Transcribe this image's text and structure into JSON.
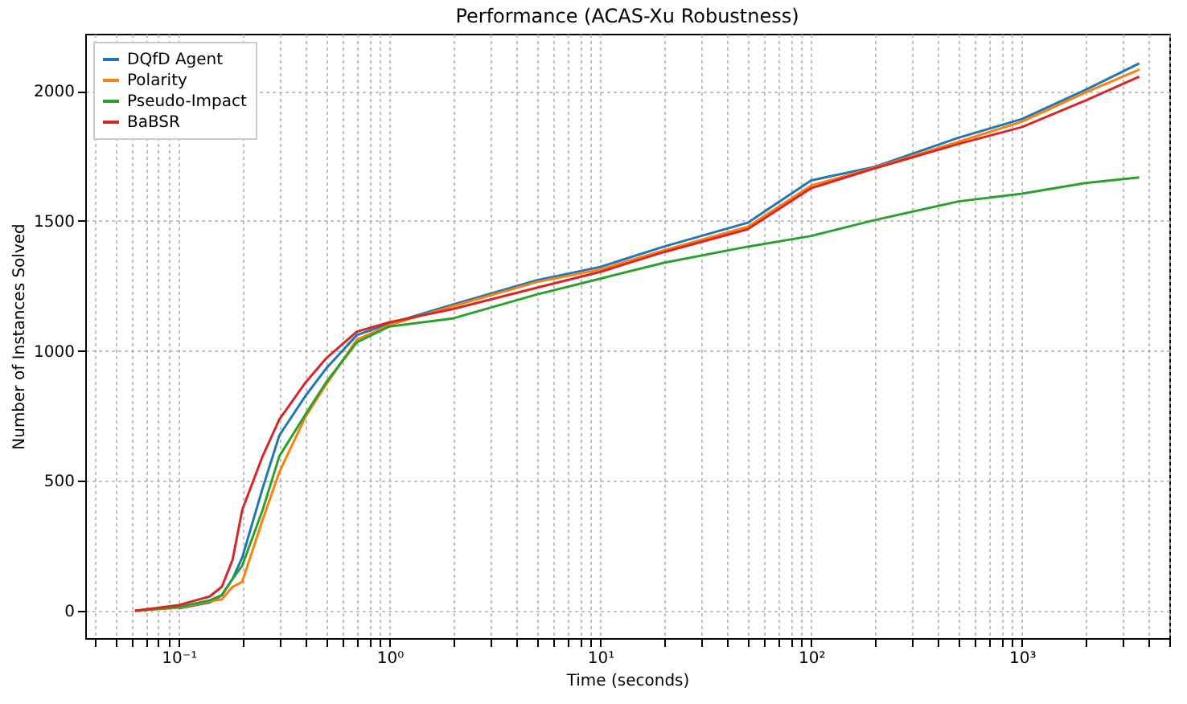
{
  "chart_data": {
    "type": "line",
    "title": "Performance (ACAS-Xu Robustness)",
    "xlabel": "Time (seconds)",
    "ylabel": "Number of Instances Solved",
    "log": "x",
    "grid": true,
    "legend": "top left",
    "line_style": "solid",
    "marker": "none",
    "x": [
      0.062,
      0.1,
      0.14,
      0.16,
      0.18,
      0.2,
      0.25,
      0.3,
      0.4,
      0.5,
      0.7,
      1,
      2,
      5,
      10,
      20,
      50,
      100,
      200,
      500,
      1000,
      2000,
      3600
    ],
    "series": [
      {
        "name": "DQfD Agent",
        "color": "#1f77b4",
        "values": [
          null,
          9,
          32,
          60,
          123,
          205,
          472,
          675,
          828,
          932,
          1061,
          1105,
          1178,
          1272,
          1323,
          1401,
          1493,
          1656,
          1708,
          1820,
          1892,
          2004,
          2106
        ]
      },
      {
        "name": "Polarity",
        "color": "#ff7f0e",
        "values": [
          0,
          12,
          36,
          44,
          92,
          112,
          350,
          534,
          748,
          870,
          1043,
          1100,
          1172,
          1265,
          1313,
          1387,
          1477,
          1636,
          1705,
          1804,
          1882,
          1994,
          2082
        ]
      },
      {
        "name": "Pseudo-Impact",
        "color": "#2ca02c",
        "values": [
          0,
          15,
          40,
          60,
          123,
          174,
          388,
          595,
          757,
          879,
          1033,
          1094,
          1125,
          1217,
          1278,
          1339,
          1401,
          1442,
          1503,
          1575,
          1605,
          1646,
          1667
        ]
      },
      {
        "name": "BaBSR",
        "color": "#d62728",
        "values": [
          0,
          22,
          55,
          92,
          196,
          388,
          595,
          736,
          879,
          971,
          1074,
          1110,
          1161,
          1243,
          1304,
          1380,
          1468,
          1626,
          1702,
          1796,
          1861,
          1963,
          2055
        ]
      }
    ],
    "xlim": [
      0.036,
      5000
    ],
    "xticks": [
      {
        "value": 0.04,
        "label": null
      },
      {
        "value": 0.05,
        "label": null
      },
      {
        "value": 0.06,
        "label": null
      },
      {
        "value": 0.07,
        "label": null
      },
      {
        "value": 0.08,
        "label": null
      },
      {
        "value": 0.09,
        "label": null
      },
      {
        "value": 0.1,
        "label": "10⁻¹"
      },
      {
        "value": 0.2,
        "label": null
      },
      {
        "value": 0.3,
        "label": null
      },
      {
        "value": 0.4,
        "label": null
      },
      {
        "value": 0.5,
        "label": null
      },
      {
        "value": 0.6,
        "label": null
      },
      {
        "value": 0.7,
        "label": null
      },
      {
        "value": 0.8,
        "label": null
      },
      {
        "value": 0.9,
        "label": null
      },
      {
        "value": 1,
        "label": "10⁰"
      },
      {
        "value": 2,
        "label": null
      },
      {
        "value": 3,
        "label": null
      },
      {
        "value": 4,
        "label": null
      },
      {
        "value": 5,
        "label": null
      },
      {
        "value": 6,
        "label": null
      },
      {
        "value": 7,
        "label": null
      },
      {
        "value": 8,
        "label": null
      },
      {
        "value": 9,
        "label": null
      },
      {
        "value": 10,
        "label": "10¹"
      },
      {
        "value": 20,
        "label": null
      },
      {
        "value": 30,
        "label": null
      },
      {
        "value": 40,
        "label": null
      },
      {
        "value": 50,
        "label": null
      },
      {
        "value": 60,
        "label": null
      },
      {
        "value": 70,
        "label": null
      },
      {
        "value": 80,
        "label": null
      },
      {
        "value": 90,
        "label": null
      },
      {
        "value": 100,
        "label": "10²"
      },
      {
        "value": 200,
        "label": null
      },
      {
        "value": 300,
        "label": null
      },
      {
        "value": 400,
        "label": null
      },
      {
        "value": 500,
        "label": null
      },
      {
        "value": 600,
        "label": null
      },
      {
        "value": 700,
        "label": null
      },
      {
        "value": 800,
        "label": null
      },
      {
        "value": 900,
        "label": null
      },
      {
        "value": 1000,
        "label": "10³"
      },
      {
        "value": 2000,
        "label": null
      },
      {
        "value": 3000,
        "label": null
      },
      {
        "value": 4000,
        "label": null
      },
      {
        "value": 5000,
        "label": null
      }
    ],
    "ylim": [
      -105,
      2220
    ],
    "yticks": [
      0,
      500,
      1000,
      1500,
      2000
    ]
  }
}
